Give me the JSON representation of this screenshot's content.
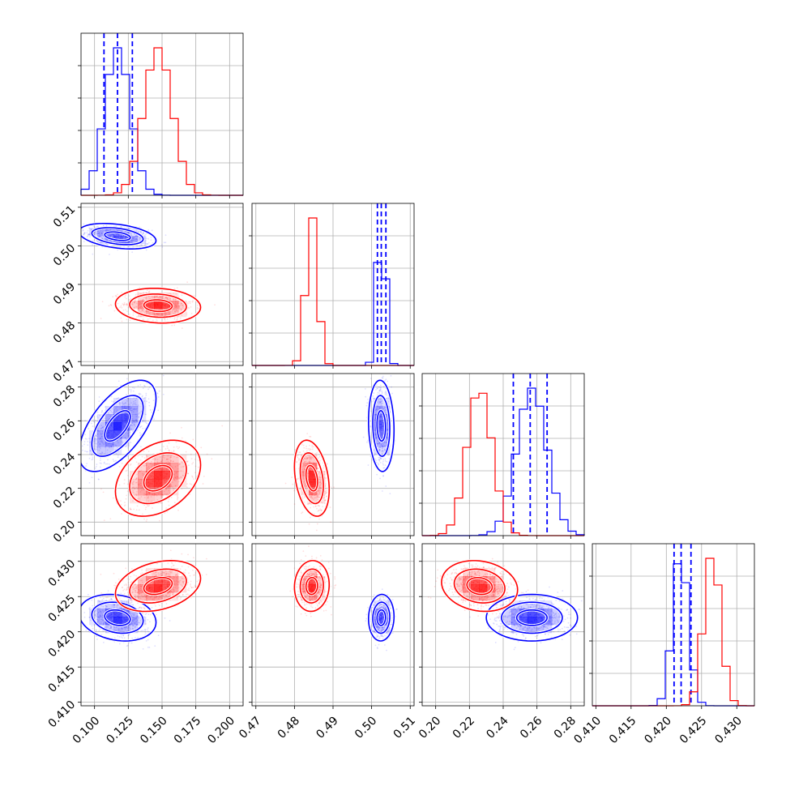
{
  "chart_data": {
    "type": "corner",
    "colors": {
      "blue": "#0000ff",
      "red": "#ff0000",
      "grid": "#b0b0b0"
    },
    "grid": true,
    "parameters": [
      {
        "range": [
          0.09,
          0.21
        ],
        "ticks": [
          0.1,
          0.125,
          0.15,
          0.175,
          0.2
        ],
        "tick_labels": [
          "0.100",
          "0.125",
          "0.150",
          "0.175",
          "0.200"
        ]
      },
      {
        "range": [
          0.469,
          0.511
        ],
        "ticks": [
          0.47,
          0.48,
          0.49,
          0.5,
          0.51
        ],
        "tick_labels": [
          "0.47",
          "0.48",
          "0.49",
          "0.50",
          "0.51"
        ]
      },
      {
        "range": [
          0.192,
          0.288
        ],
        "ticks": [
          0.2,
          0.22,
          0.24,
          0.26,
          0.28
        ],
        "tick_labels": [
          "0.20",
          "0.22",
          "0.24",
          "0.26",
          "0.28"
        ]
      },
      {
        "range": [
          0.4095,
          0.4325
        ],
        "ticks": [
          0.41,
          0.415,
          0.42,
          0.425,
          0.43
        ],
        "tick_labels": [
          "0.410",
          "0.415",
          "0.420",
          "0.425",
          "0.430"
        ]
      }
    ],
    "series": [
      {
        "color": "#0000ff",
        "means": [
          0.117,
          0.5025,
          0.257,
          0.422
        ],
        "stds": [
          0.0095,
          0.0011,
          0.009,
          0.0011
        ],
        "quantiles": [
          [
            0.107,
            0.117,
            0.128
          ],
          [
            0.5015,
            0.5025,
            0.5037
          ],
          [
            0.246,
            0.256,
            0.266
          ],
          [
            0.4211,
            0.4221,
            0.4235
          ]
        ],
        "correlations": [
          [
            1,
            -0.35,
            0.6,
            -0.2
          ],
          [
            -0.35,
            1,
            -0.1,
            0.05
          ],
          [
            0.6,
            -0.1,
            1,
            0.0
          ],
          [
            -0.2,
            0.05,
            0.0,
            1
          ]
        ]
      },
      {
        "color": "#ff0000",
        "means": [
          0.147,
          0.4845,
          0.226,
          0.4265
        ],
        "stds": [
          0.0105,
          0.0015,
          0.0075,
          0.0012
        ],
        "correlations": [
          [
            1,
            -0.1,
            0.35,
            0.3
          ],
          [
            -0.1,
            1,
            -0.3,
            0.05
          ],
          [
            0.35,
            -0.3,
            1,
            -0.15
          ],
          [
            0.3,
            0.05,
            -0.15,
            1
          ]
        ]
      }
    ]
  }
}
